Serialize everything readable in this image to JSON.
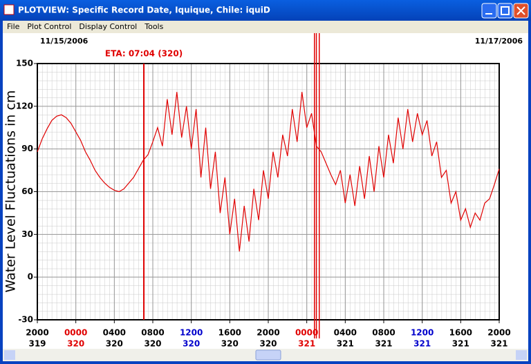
{
  "window": {
    "title": "PLOTVIEW: Specific Record Date, Iquique, Chile: iquiD",
    "menu": [
      "File",
      "Plot Control",
      "Display Control",
      "Tools"
    ]
  },
  "chart_data": {
    "type": "line",
    "date_left": "11/15/2006",
    "date_right": "11/17/2006",
    "ylabel": "Water Level Fluctuations in cm",
    "color": "#e00000",
    "x": [
      0,
      0.5,
      1,
      1.5,
      2,
      2.5,
      3,
      3.5,
      4,
      4.5,
      5,
      5.5,
      6,
      6.5,
      7,
      7.5,
      8,
      8.5,
      9,
      9.5,
      10,
      10.5,
      11,
      11.5,
      12,
      12.5,
      13,
      13.5,
      14,
      14.5,
      15,
      15.5,
      16,
      16.5,
      17,
      17.5,
      18,
      18.5,
      19,
      19.5,
      20,
      20.5,
      21,
      21.5,
      22,
      22.5,
      23,
      23.5,
      24,
      24.5,
      25,
      25.5,
      26,
      26.5,
      27,
      27.5,
      28,
      28.5,
      29,
      29.5,
      30,
      30.5,
      31,
      31.5,
      32,
      32.5,
      33,
      33.5,
      34,
      34.5,
      35,
      35.5,
      36,
      36.5,
      37,
      37.5,
      38,
      38.5,
      39,
      39.5,
      40,
      40.5,
      41,
      41.5,
      42,
      42.5,
      43,
      43.5,
      44,
      44.5,
      45,
      45.5,
      46,
      46.5,
      47,
      47.5,
      48
    ],
    "values": [
      88,
      97,
      104,
      110,
      113,
      114,
      112,
      108,
      102,
      96,
      88,
      82,
      75,
      70,
      66,
      63,
      61,
      60,
      62,
      66,
      70,
      76,
      82,
      86,
      95,
      105,
      92,
      125,
      100,
      130,
      98,
      120,
      90,
      118,
      70,
      105,
      62,
      88,
      45,
      70,
      30,
      55,
      18,
      50,
      25,
      62,
      40,
      75,
      55,
      88,
      70,
      100,
      85,
      118,
      95,
      130,
      105,
      115,
      92,
      88,
      80,
      72,
      65,
      75,
      52,
      72,
      50,
      78,
      55,
      85,
      60,
      92,
      70,
      100,
      80,
      112,
      90,
      118,
      95,
      115,
      100,
      110,
      85,
      95,
      70,
      75,
      52,
      60,
      40,
      48,
      35,
      45,
      40,
      52,
      55,
      65,
      76
    ],
    "xlim": [
      0,
      48
    ],
    "ylim": [
      -30,
      150
    ],
    "yticks": [
      -30,
      0,
      30,
      60,
      90,
      120,
      150
    ],
    "xticks": [
      {
        "value": 0,
        "label": "2000",
        "day": "319",
        "color": "#000000"
      },
      {
        "value": 4,
        "label": "0000",
        "day": "320",
        "color": "#e00000"
      },
      {
        "value": 8,
        "label": "0400",
        "day": "320",
        "color": "#000000"
      },
      {
        "value": 12,
        "label": "0800",
        "day": "320",
        "color": "#000000"
      },
      {
        "value": 16,
        "label": "1200",
        "day": "320",
        "color": "#0000cc"
      },
      {
        "value": 20,
        "label": "1600",
        "day": "320",
        "color": "#000000"
      },
      {
        "value": 24,
        "label": "2000",
        "day": "320",
        "color": "#000000"
      },
      {
        "value": 28,
        "label": "0000",
        "day": "321",
        "color": "#e00000"
      },
      {
        "value": 32,
        "label": "0400",
        "day": "321",
        "color": "#000000"
      },
      {
        "value": 36,
        "label": "0800",
        "day": "321",
        "color": "#000000"
      },
      {
        "value": 40,
        "label": "1200",
        "day": "321",
        "color": "#0000cc"
      },
      {
        "value": 44,
        "label": "1600",
        "day": "321",
        "color": "#000000"
      },
      {
        "value": 48,
        "label": "2000",
        "day": "321",
        "color": "#000000"
      }
    ],
    "markers": [
      {
        "value": 11.07,
        "label": "ETA: 07:04 (320)"
      },
      {
        "value": 28.8
      },
      {
        "value": 29.0
      },
      {
        "value": 29.3
      }
    ],
    "grid": true
  }
}
